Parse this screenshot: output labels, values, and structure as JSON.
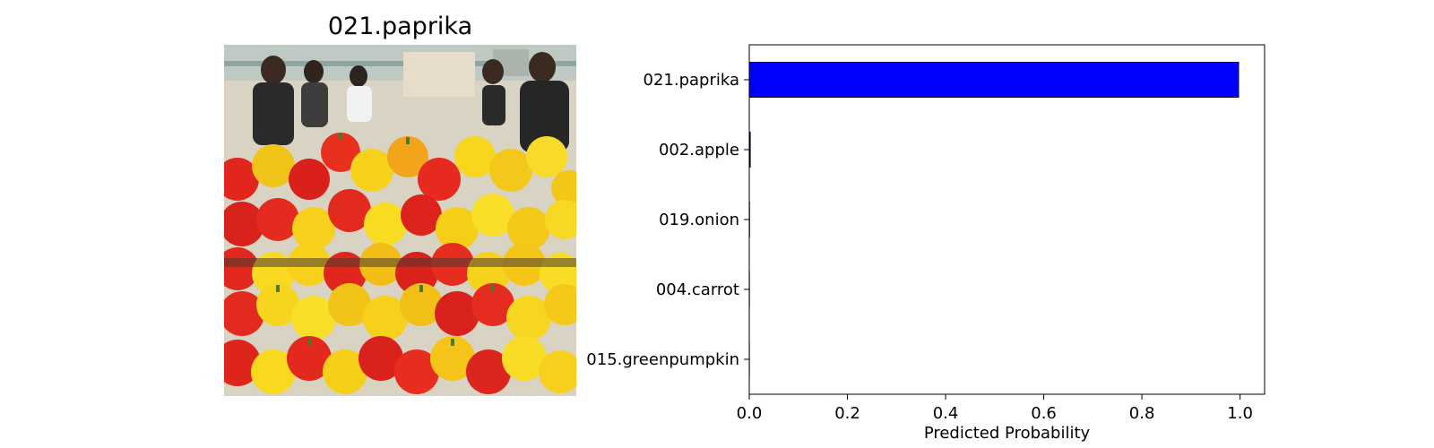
{
  "image_panel": {
    "title": "021.paprika",
    "photo_subject": "market display of red and yellow bell peppers with shoppers behind"
  },
  "chart_data": {
    "type": "bar",
    "orientation": "horizontal",
    "categories": [
      "021.paprika",
      "002.apple",
      "019.onion",
      "004.carrot",
      "015.greenpumpkin"
    ],
    "values": [
      0.997,
      0.002,
      0.0005,
      0.0003,
      0.0002
    ],
    "xlabel": "Predicted Probability",
    "ylabel": "",
    "title": "",
    "xlim": [
      0,
      1.05
    ],
    "xticks": [
      0.0,
      0.2,
      0.4,
      0.6,
      0.8,
      1.0
    ],
    "xtick_labels": [
      "0.0",
      "0.2",
      "0.4",
      "0.6",
      "0.8",
      "1.0"
    ],
    "grid": false,
    "bar_color": "#0000ff",
    "edge_color": "#000000"
  }
}
